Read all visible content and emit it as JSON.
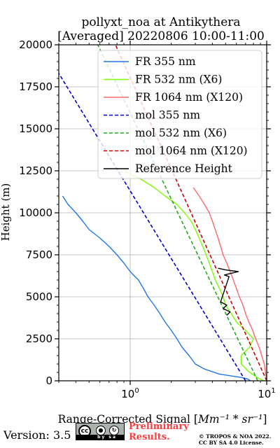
{
  "chart_data": {
    "type": "line",
    "title": [
      "pollyxt_noa at Antikythera",
      "[Averaged] 20220806 10:00-11:00"
    ],
    "xlabel_prefix": "Range-Corrected Signal [",
    "xlabel_math": "Mm⁻¹ * sr⁻¹",
    "xlabel_suffix": "]",
    "ylabel": "Height (m)",
    "xscale": "log",
    "xlim": [
      0.3,
      10
    ],
    "ylim": [
      0,
      20000
    ],
    "xticks": [
      {
        "value": 1,
        "base": "10",
        "exp": "0"
      },
      {
        "value": 10,
        "base": "10",
        "exp": "1"
      }
    ],
    "yticks": [
      0,
      2500,
      5000,
      7500,
      10000,
      12500,
      15000,
      17500,
      20000
    ],
    "grid": true,
    "legend_position": "upper-right",
    "series": [
      {
        "name": "FR 355 nm",
        "color": "#1f77e8",
        "style": "solid",
        "points": [
          [
            7.6,
            0
          ],
          [
            7.3,
            100
          ],
          [
            6.5,
            200
          ],
          [
            4.5,
            400
          ],
          [
            3.5,
            700
          ],
          [
            3.0,
            1000
          ],
          [
            2.7,
            1500
          ],
          [
            2.4,
            2000
          ],
          [
            2.2,
            2500
          ],
          [
            2.0,
            3000
          ],
          [
            1.8,
            3500
          ],
          [
            1.65,
            4000
          ],
          [
            1.5,
            4500
          ],
          [
            1.35,
            5000
          ],
          [
            1.25,
            5500
          ],
          [
            1.15,
            6000
          ],
          [
            1.0,
            6500
          ],
          [
            0.9,
            7000
          ],
          [
            0.8,
            7500
          ],
          [
            0.7,
            8000
          ],
          [
            0.6,
            8500
          ],
          [
            0.5,
            9000
          ],
          [
            0.45,
            9500
          ],
          [
            0.4,
            10000
          ],
          [
            0.35,
            10500
          ],
          [
            0.32,
            11000
          ]
        ]
      },
      {
        "name": "FR 532 nm (X6)",
        "color": "#7cfc00",
        "style": "solid",
        "points": [
          [
            9.5,
            0
          ],
          [
            8.5,
            200
          ],
          [
            7.5,
            500
          ],
          [
            6.5,
            1000
          ],
          [
            6.5,
            1500
          ],
          [
            7.5,
            2000
          ],
          [
            8.0,
            2500
          ],
          [
            7.0,
            3000
          ],
          [
            6.0,
            3500
          ],
          [
            5.5,
            4000
          ],
          [
            5.0,
            4500
          ],
          [
            4.8,
            5000
          ],
          [
            4.5,
            5500
          ],
          [
            4.2,
            6000
          ],
          [
            4.0,
            6500
          ],
          [
            3.8,
            7000
          ],
          [
            3.6,
            7500
          ],
          [
            3.4,
            8000
          ],
          [
            3.2,
            8500
          ],
          [
            3.0,
            9000
          ],
          [
            2.8,
            9500
          ],
          [
            2.5,
            10000
          ],
          [
            2.2,
            10500
          ],
          [
            1.8,
            11000
          ],
          [
            1.5,
            11500
          ],
          [
            1.2,
            12000
          ],
          [
            0.9,
            12500
          ]
        ]
      },
      {
        "name": "FR 1064 nm (X120)",
        "color": "#f86a6a",
        "style": "solid",
        "points": [
          [
            10.0,
            0
          ],
          [
            9.8,
            500
          ],
          [
            9.6,
            1000
          ],
          [
            9.2,
            1500
          ],
          [
            8.8,
            2000
          ],
          [
            8.3,
            2500
          ],
          [
            7.9,
            3000
          ],
          [
            7.4,
            3500
          ],
          [
            7.0,
            4000
          ],
          [
            6.7,
            4500
          ],
          [
            6.3,
            5000
          ],
          [
            6.0,
            5500
          ],
          [
            5.7,
            6000
          ],
          [
            5.4,
            6500
          ],
          [
            5.1,
            7000
          ],
          [
            4.8,
            7500
          ],
          [
            4.6,
            8000
          ],
          [
            4.4,
            8500
          ],
          [
            4.2,
            9000
          ],
          [
            4.0,
            9500
          ],
          [
            3.8,
            10000
          ],
          [
            3.5,
            10500
          ],
          [
            3.2,
            11000
          ],
          [
            2.9,
            11500
          ]
        ]
      },
      {
        "name": "mol 355 nm",
        "color": "#0000cc",
        "style": "dashed",
        "points": [
          [
            7.0,
            0
          ],
          [
            0.3,
            18300
          ]
        ]
      },
      {
        "name": "mol 532 nm (X6)",
        "color": "#22aa22",
        "style": "dashed",
        "points": [
          [
            8.6,
            0
          ],
          [
            0.58,
            20000
          ]
        ]
      },
      {
        "name": "mol 1064 nm (X120)",
        "color": "#cc0000",
        "style": "dashed",
        "points": [
          [
            10.0,
            0
          ],
          [
            0.78,
            20000
          ]
        ]
      },
      {
        "name": "Reference Height",
        "color": "#000000",
        "style": "solid",
        "points": [
          [
            4.4,
            6700
          ],
          [
            5.0,
            6600
          ],
          [
            6.2,
            6500
          ],
          [
            5.5,
            6400
          ],
          [
            4.9,
            6300
          ],
          [
            5.3,
            6200
          ],
          [
            4.6,
            4700
          ],
          [
            5.1,
            4500
          ],
          [
            4.8,
            4300
          ],
          [
            5.4,
            4100
          ],
          [
            5.1,
            3900
          ]
        ]
      }
    ]
  },
  "footer": {
    "version": "Version: 3.5",
    "license_badge": [
      "cc",
      "by",
      "sa"
    ],
    "preliminary": [
      "Preliminary",
      "Results."
    ],
    "copyright": [
      "© TROPOS & NOA 2022.",
      "CC BY SA 4.0 License."
    ]
  }
}
